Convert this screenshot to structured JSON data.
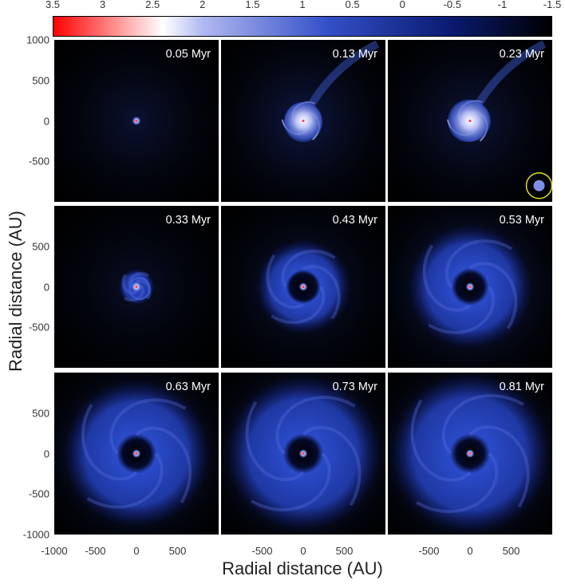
{
  "figure": {
    "xlabel": "Radial distance (AU)",
    "ylabel": "Radial distance (AU)"
  },
  "colorbar": {
    "ticks": [
      "3.5",
      "3",
      "2.5",
      "2",
      "1.5",
      "1",
      "0.5",
      "0",
      "-0.5",
      "-1",
      "-1.5"
    ],
    "range": [
      3.5,
      -1.5
    ],
    "colors": [
      "#ff0000",
      "#ffffff",
      "#b0b8f0",
      "#3450c8",
      "#0a1a70",
      "#000000"
    ]
  },
  "panels": [
    {
      "time": "0.05 Myr",
      "disk_radius_au": 15,
      "ring_outer_au": 0,
      "hole_au": 0,
      "halo": 0.25,
      "circle": false
    },
    {
      "time": "0.13 Myr",
      "disk_radius_au": 230,
      "ring_outer_au": 0,
      "hole_au": 0,
      "halo": 0.35,
      "circle": false
    },
    {
      "time": "0.23 Myr",
      "disk_radius_au": 250,
      "ring_outer_au": 0,
      "hole_au": 0,
      "halo": 0.3,
      "circle": true
    },
    {
      "time": "0.33 Myr",
      "disk_radius_au": 60,
      "ring_outer_au": 220,
      "hole_au": 0,
      "halo": 0.2,
      "circle": false
    },
    {
      "time": "0.43 Myr",
      "disk_radius_au": 30,
      "ring_outer_au": 580,
      "hole_au": 160,
      "halo": 0.3,
      "circle": false
    },
    {
      "time": "0.53 Myr",
      "disk_radius_au": 30,
      "ring_outer_au": 760,
      "hole_au": 170,
      "halo": 0.5,
      "circle": false
    },
    {
      "time": "0.63 Myr",
      "disk_radius_au": 30,
      "ring_outer_au": 900,
      "hole_au": 170,
      "halo": 0.6,
      "circle": false
    },
    {
      "time": "0.73 Myr",
      "disk_radius_au": 30,
      "ring_outer_au": 950,
      "hole_au": 170,
      "halo": 0.7,
      "circle": false
    },
    {
      "time": "0.81 Myr",
      "disk_radius_au": 30,
      "ring_outer_au": 980,
      "hole_au": 170,
      "halo": 0.75,
      "circle": false
    }
  ],
  "chart_data": {
    "type": "heatmap",
    "title": "",
    "xlabel": "Radial distance (AU)",
    "ylabel": "Radial distance (AU)",
    "xlim": [
      -1000,
      1000
    ],
    "ylim": [
      -1000,
      1000
    ],
    "grid": false,
    "layout": "3x3",
    "x_ticks": [
      "-1000",
      "-500",
      "0",
      "500"
    ],
    "x_ticks_inner": [
      "-500",
      "0",
      "500"
    ],
    "y_ticks_top": [
      "1000",
      "500",
      "0",
      "-500"
    ],
    "y_ticks_mid": [
      "500",
      "0",
      "-500"
    ],
    "y_ticks_bottom": [
      "500",
      "0",
      "-500",
      "-1000"
    ],
    "colorbar_ticks": [
      "3.5",
      "3",
      "2.5",
      "2",
      "1.5",
      "1",
      "0.5",
      "0",
      "-0.5",
      "-1",
      "-1.5"
    ],
    "panel_times": [
      "0.05 Myr",
      "0.13 Myr",
      "0.23 Myr",
      "0.33 Myr",
      "0.43 Myr",
      "0.53 Myr",
      "0.63 Myr",
      "0.73 Myr",
      "0.81 Myr"
    ]
  }
}
